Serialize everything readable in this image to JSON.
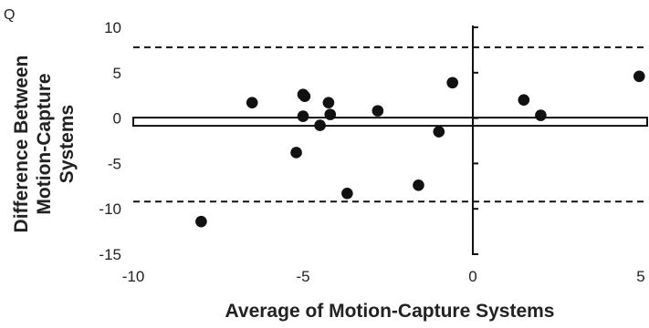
{
  "panel_label": "Q",
  "chart_data": {
    "type": "scatter",
    "title": "",
    "xlabel": "Average of Motion-Capture Systems",
    "ylabel_lines": [
      "Difference Between",
      "Motion-Capture",
      "Systems"
    ],
    "xlim": [
      -10,
      5
    ],
    "ylim": [
      -15,
      10
    ],
    "x_ticks": [
      -10,
      -5,
      0,
      5
    ],
    "x_tick_labels": [
      "-10",
      "-5",
      "0",
      "5"
    ],
    "y_ticks": [
      -15,
      -10,
      -5,
      0,
      5,
      10
    ],
    "y_tick_labels": [
      "-15",
      "-10",
      "-5",
      "0",
      "5",
      "10"
    ],
    "grid": false,
    "legend": "none",
    "mean_difference": -0.4,
    "limits_of_agreement": {
      "upper": 7.8,
      "lower": -9.2
    },
    "points": [
      {
        "x": -8.0,
        "y": -11.4
      },
      {
        "x": -6.5,
        "y": 1.7
      },
      {
        "x": -5.2,
        "y": -3.8
      },
      {
        "x": -5.0,
        "y": 2.6
      },
      {
        "x": -4.95,
        "y": 2.4
      },
      {
        "x": -5.0,
        "y": 0.2
      },
      {
        "x": -4.5,
        "y": -0.8
      },
      {
        "x": -4.25,
        "y": 1.7
      },
      {
        "x": -4.2,
        "y": 0.4
      },
      {
        "x": -3.7,
        "y": -8.3
      },
      {
        "x": -2.8,
        "y": 0.8
      },
      {
        "x": -1.6,
        "y": -7.4
      },
      {
        "x": -1.0,
        "y": -1.5
      },
      {
        "x": -0.6,
        "y": 3.9
      },
      {
        "x": 1.5,
        "y": 2.0
      },
      {
        "x": 2.0,
        "y": 0.3
      },
      {
        "x": 4.9,
        "y": 4.6
      }
    ],
    "colors": {
      "points": "#111111",
      "lines": "#111111",
      "text": "#222222"
    }
  }
}
